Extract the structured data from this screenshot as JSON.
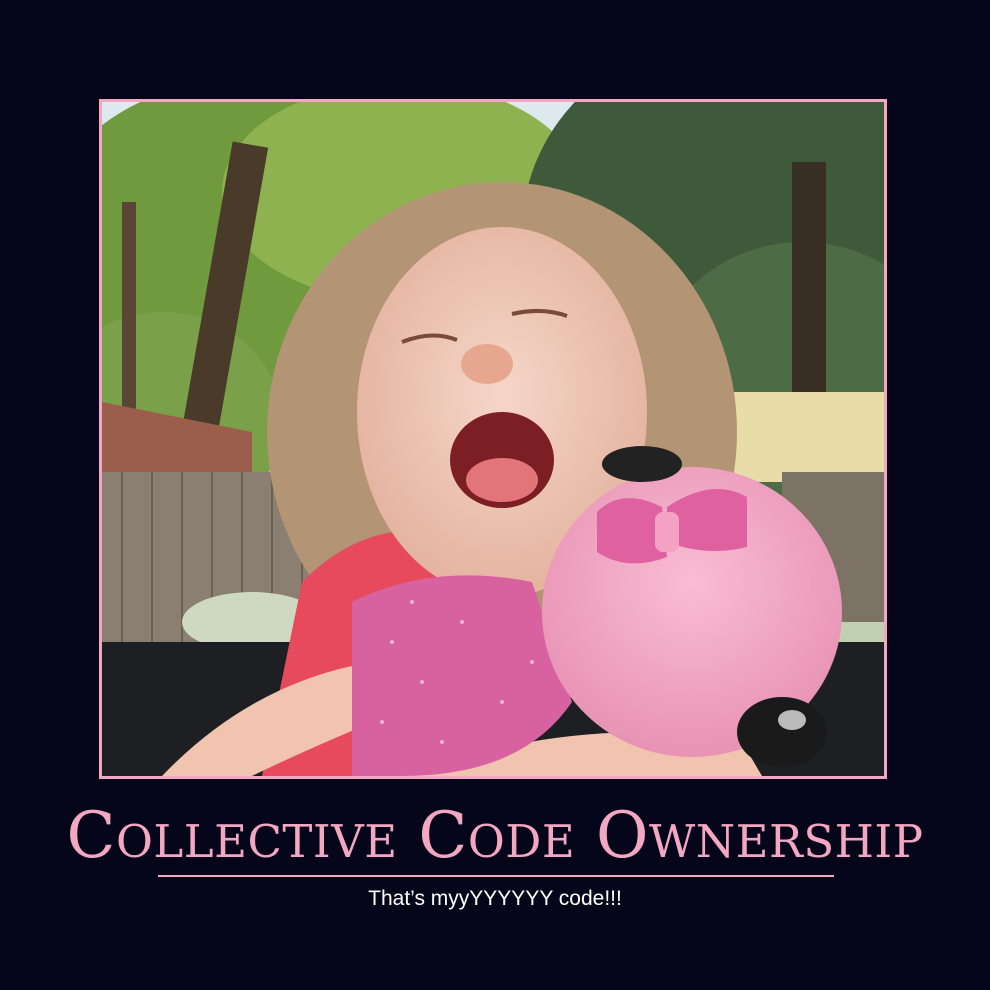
{
  "poster": {
    "title": "Collective Code Ownership",
    "caption": "That’s myyYYYYYY code!!!"
  },
  "photo": {
    "subject": "photo"
  },
  "colors": {
    "background": "#06061a",
    "accent": "#f4a7c2",
    "caption_text": "#ffffff"
  }
}
